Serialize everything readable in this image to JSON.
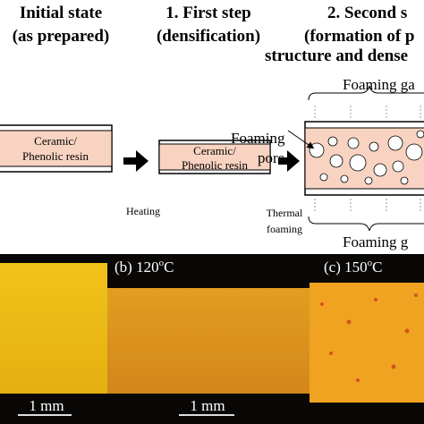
{
  "headers": [
    {
      "lines": [
        "Initial state",
        "(as prepared)"
      ]
    },
    {
      "lines": [
        "1.   First step",
        "(densification)"
      ]
    },
    {
      "lines": [
        "2.   Second s",
        "(formation of p",
        "structure and dense"
      ]
    }
  ],
  "boxes": [
    {
      "lines": [
        "Ceramic/",
        "Phenolic resin"
      ]
    },
    {
      "lines": [
        "Ceramic/",
        "Phenolic resin"
      ]
    }
  ],
  "arrows": [
    {
      "label": [
        "Heating"
      ]
    },
    {
      "label": [
        "Thermal",
        "foaming"
      ]
    }
  ],
  "annotations": {
    "pore": [
      "Foaming",
      "pore"
    ],
    "gas_top": "Foaming ga",
    "gas_bottom": "Foaming g"
  },
  "photos": [
    {
      "scale": "1 mm"
    },
    {
      "label": "(b) 120",
      "sup": "o",
      "unit": "C",
      "scale": "1 mm"
    },
    {
      "label": "(c) 150",
      "sup": "o",
      "unit": "C"
    }
  ]
}
